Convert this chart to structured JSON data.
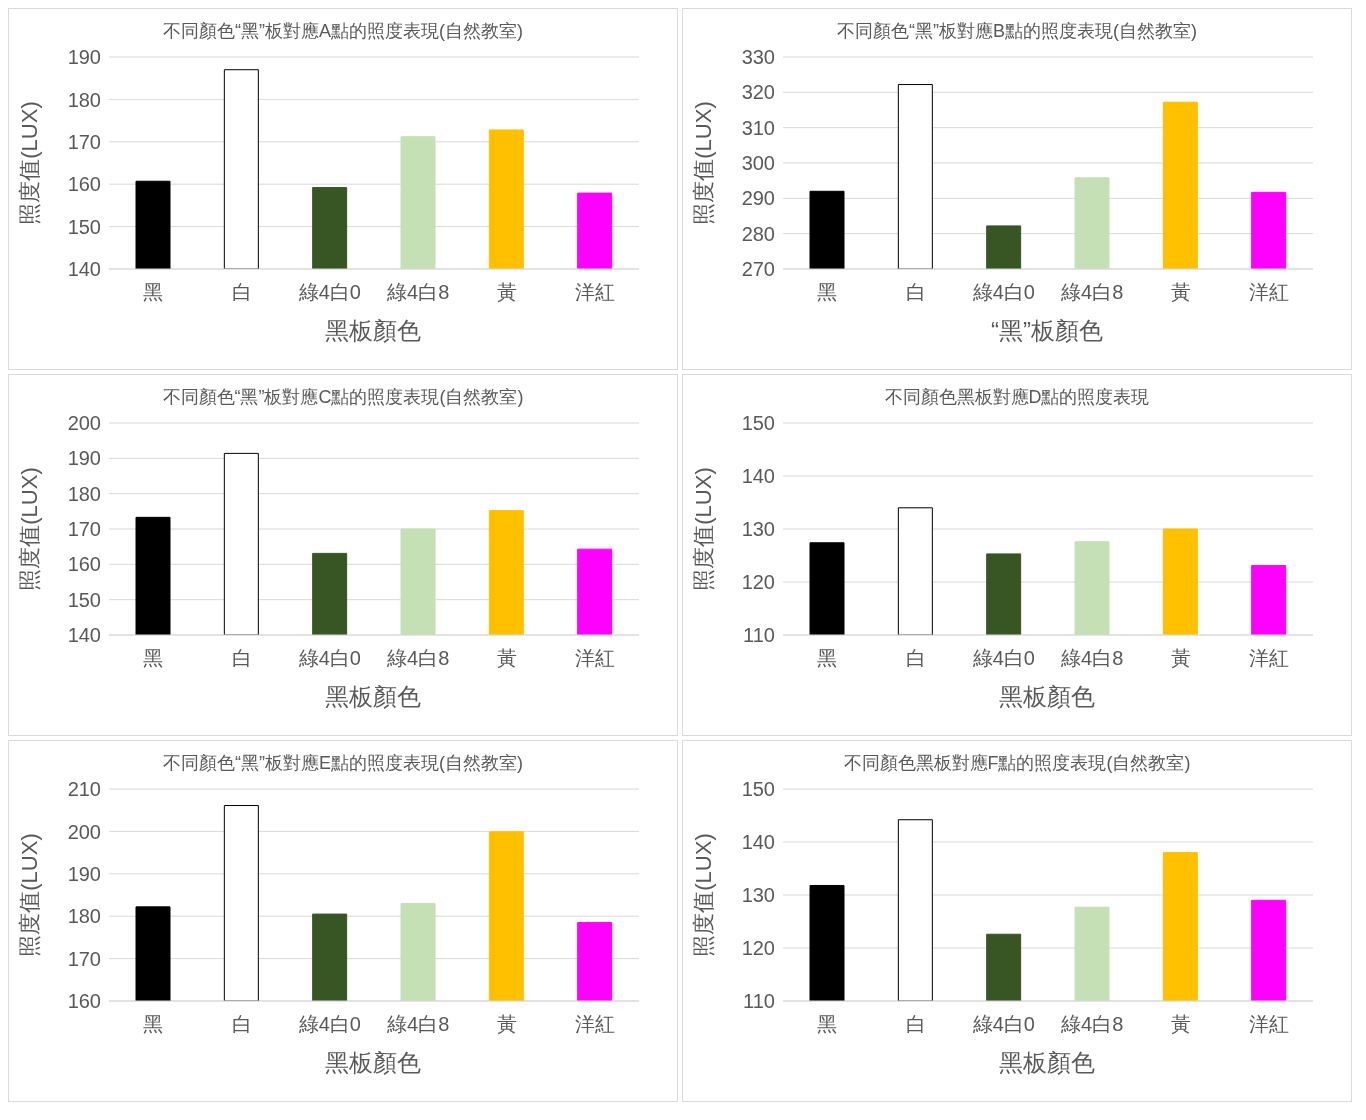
{
  "chart_data": [
    {
      "type": "bar",
      "title": "不同顏色“黑”板對應A點的照度表現(自然教室)",
      "xlabel": "黑板顏色",
      "ylabel": "照度值(LUX)",
      "categories": [
        "黑",
        "白",
        "綠4白0",
        "綠4白8",
        "黃",
        "洋紅"
      ],
      "values": [
        160.7,
        187,
        159.2,
        171.2,
        172.8,
        157.9
      ],
      "colors": [
        "#000000",
        "#ffffff",
        "#375623",
        "#c5e0b4",
        "#ffc000",
        "#ff00ff"
      ],
      "ylim": [
        140,
        190
      ],
      "yticks": [
        140,
        150,
        160,
        170,
        180,
        190
      ],
      "grid": "y"
    },
    {
      "type": "bar",
      "title": "不同顏色“黑”板對應B點的照度表現(自然教室)",
      "xlabel": "“黑”板顏色",
      "ylabel": "照度值(LUX)",
      "categories": [
        "黑",
        "白",
        "綠4白0",
        "綠4白8",
        "黃",
        "洋紅"
      ],
      "values": [
        292,
        322.2,
        282.2,
        295.8,
        317.2,
        291.7
      ],
      "colors": [
        "#000000",
        "#ffffff",
        "#375623",
        "#c5e0b4",
        "#ffc000",
        "#ff00ff"
      ],
      "ylim": [
        270,
        330
      ],
      "yticks": [
        270,
        280,
        290,
        300,
        310,
        320,
        330
      ],
      "grid": "y"
    },
    {
      "type": "bar",
      "title": "不同顏色“黑”板對應C點的照度表現(自然教室)",
      "xlabel": "黑板顏色",
      "ylabel": "照度值(LUX)",
      "categories": [
        "黑",
        "白",
        "綠4白0",
        "綠4白8",
        "黃",
        "洋紅"
      ],
      "values": [
        173.3,
        191.4,
        163.1,
        170,
        175.2,
        164.3
      ],
      "colors": [
        "#000000",
        "#ffffff",
        "#375623",
        "#c5e0b4",
        "#ffc000",
        "#ff00ff"
      ],
      "ylim": [
        140,
        200
      ],
      "yticks": [
        140,
        150,
        160,
        170,
        180,
        190,
        200
      ],
      "grid": "y"
    },
    {
      "type": "bar",
      "title": "不同顏色黑板對應D點的照度表現",
      "xlabel": "黑板顏色",
      "ylabel": "照度值(LUX)",
      "categories": [
        "黑",
        "白",
        "綠4白0",
        "綠4白8",
        "黃",
        "洋紅"
      ],
      "values": [
        127.4,
        134,
        125.3,
        127.6,
        130,
        123.1
      ],
      "colors": [
        "#000000",
        "#ffffff",
        "#375623",
        "#c5e0b4",
        "#ffc000",
        "#ff00ff"
      ],
      "ylim": [
        110,
        150
      ],
      "yticks": [
        110,
        120,
        130,
        140,
        150
      ],
      "grid": "y"
    },
    {
      "type": "bar",
      "title": "不同顏色“黑”板對應E點的照度表現(自然教室)",
      "xlabel": "黑板顏色",
      "ylabel": "照度值(LUX)",
      "categories": [
        "黑",
        "白",
        "綠4白0",
        "綠4白8",
        "黃",
        "洋紅"
      ],
      "values": [
        182.2,
        206.1,
        180.5,
        183,
        199.9,
        178.5
      ],
      "colors": [
        "#000000",
        "#ffffff",
        "#375623",
        "#c5e0b4",
        "#ffc000",
        "#ff00ff"
      ],
      "ylim": [
        160,
        210
      ],
      "yticks": [
        160,
        170,
        180,
        190,
        200,
        210
      ],
      "grid": "y"
    },
    {
      "type": "bar",
      "title": "不同顏色黑板對應F點的照度表現(自然教室)",
      "xlabel": "黑板顏色",
      "ylabel": "照度值(LUX)",
      "categories": [
        "黑",
        "白",
        "綠4白0",
        "綠4白8",
        "黃",
        "洋紅"
      ],
      "values": [
        131.8,
        144.2,
        122.6,
        127.7,
        138,
        129
      ],
      "colors": [
        "#000000",
        "#ffffff",
        "#375623",
        "#c5e0b4",
        "#ffc000",
        "#ff00ff"
      ],
      "ylim": [
        110,
        150
      ],
      "yticks": [
        110,
        120,
        130,
        140,
        150
      ],
      "grid": "y"
    }
  ]
}
